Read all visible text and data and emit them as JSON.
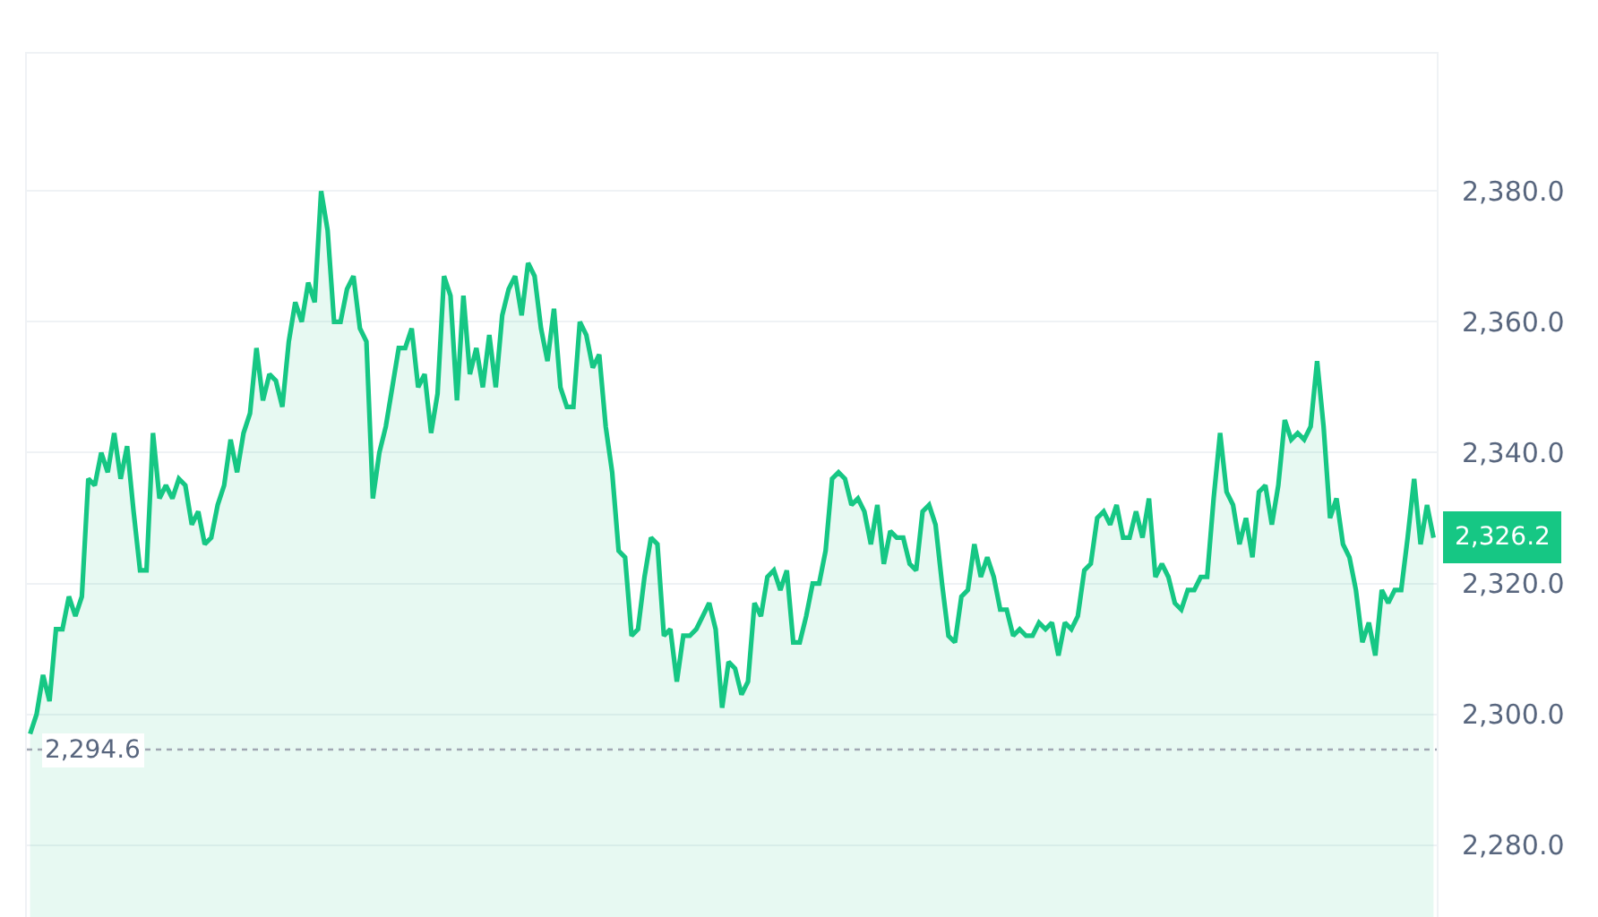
{
  "chart_data": {
    "type": "area",
    "categories": [
      null,
      null,
      null,
      null,
      null,
      null,
      null,
      null,
      null,
      null,
      null,
      null,
      null,
      null,
      null,
      null,
      null,
      null,
      null,
      null,
      null,
      null,
      null,
      null,
      null,
      null,
      null,
      null,
      null,
      null,
      null,
      null,
      null,
      null,
      null,
      null,
      null,
      null,
      null,
      null,
      null,
      null,
      null,
      null,
      null,
      null,
      null,
      null,
      null,
      null,
      null,
      null,
      null,
      null,
      null,
      null,
      null,
      null,
      null,
      null,
      null,
      null,
      null,
      null,
      null,
      null,
      null,
      null,
      null,
      null,
      null,
      null,
      null,
      null,
      null,
      null,
      null,
      null,
      null,
      null,
      null,
      null,
      null,
      null,
      null,
      null,
      null,
      null,
      null,
      null,
      null,
      null,
      null,
      null,
      null,
      null,
      null,
      null,
      null,
      null,
      null,
      null,
      null,
      null,
      null,
      null,
      null,
      null,
      null,
      null,
      null,
      null,
      null,
      null,
      null,
      null,
      null,
      null,
      null,
      null,
      null,
      null,
      null,
      null,
      null,
      null,
      null,
      null,
      null,
      null,
      null,
      null,
      null,
      null,
      null,
      null,
      null,
      null,
      null,
      null,
      null,
      null,
      null,
      null,
      null,
      null,
      null,
      null,
      null,
      null,
      null,
      null,
      null,
      null,
      null,
      null,
      null,
      null,
      null,
      null,
      null,
      null,
      null,
      null,
      null,
      null,
      null,
      null,
      null,
      null,
      null,
      null,
      null,
      null,
      null,
      null,
      null,
      null,
      null,
      null,
      null,
      null,
      null,
      null,
      null,
      null,
      null,
      null,
      null,
      null,
      null,
      null,
      null,
      null,
      null,
      null,
      null,
      null,
      null,
      null,
      null,
      null,
      null,
      null,
      null,
      null,
      null,
      null,
      null,
      null,
      null,
      null,
      null,
      null,
      null,
      null,
      null,
      null
    ],
    "series": [
      {
        "color": "#16c784",
        "values": [
          2297,
          2300,
          2306,
          2302,
          2313,
          2313,
          2318,
          2315,
          2318,
          2336,
          2335,
          2340,
          2337,
          2343,
          2336,
          2341,
          2331,
          2322,
          2322,
          2343,
          2333,
          2335,
          2333,
          2336,
          2335,
          2329,
          2331,
          2326,
          2327,
          2332,
          2335,
          2342,
          2337,
          2343,
          2346,
          2356,
          2348,
          2352,
          2351,
          2347,
          2357,
          2363,
          2360,
          2366,
          2363,
          2380,
          2374,
          2360,
          2360,
          2365,
          2367,
          2359,
          2357,
          2333,
          2340,
          2344,
          2350,
          2356,
          2356,
          2359,
          2350,
          2352,
          2343,
          2349,
          2367,
          2364,
          2348,
          2364,
          2352,
          2356,
          2350,
          2358,
          2350,
          2361,
          2365,
          2367,
          2361,
          2369,
          2367,
          2359,
          2354,
          2362,
          2350,
          2347,
          2347,
          2360,
          2358,
          2353,
          2355,
          2344,
          2337,
          2325,
          2324,
          2312,
          2313,
          2321,
          2327,
          2326,
          2312,
          2313,
          2305,
          2312,
          2312,
          2313,
          2315,
          2317,
          2313,
          2301,
          2308,
          2307,
          2303,
          2305,
          2317,
          2315,
          2321,
          2322,
          2319,
          2322,
          2311,
          2311,
          2315,
          2320,
          2320,
          2325,
          2336,
          2337,
          2336,
          2332,
          2333,
          2331,
          2326,
          2332,
          2323,
          2328,
          2327,
          2327,
          2323,
          2322,
          2331,
          2332,
          2329,
          2320,
          2312,
          2311,
          2318,
          2319,
          2326,
          2321,
          2324,
          2321,
          2316,
          2316,
          2312,
          2313,
          2312,
          2312,
          2314,
          2313,
          2314,
          2309,
          2314,
          2313,
          2315,
          2322,
          2323,
          2330,
          2331,
          2329,
          2332,
          2327,
          2327,
          2331,
          2327,
          2333,
          2321,
          2323,
          2321,
          2317,
          2316,
          2319,
          2319,
          2321,
          2321,
          2333,
          2343,
          2334,
          2332,
          2326,
          2330,
          2324,
          2334,
          2335,
          2329,
          2335,
          2345,
          2342,
          2343,
          2342,
          2344,
          2354,
          2344,
          2330,
          2333,
          2326,
          2324,
          2319,
          2311,
          2314,
          2309,
          2319,
          2317,
          2319,
          2319,
          2327,
          2336,
          2326,
          2332,
          2327
        ]
      }
    ],
    "ylim": [
      2269,
      2401
    ],
    "yticks": [
      {
        "value": 2280,
        "label": "2,280.0"
      },
      {
        "value": 2300,
        "label": "2,300.0"
      },
      {
        "value": 2320,
        "label": "2,320.0"
      },
      {
        "value": 2340,
        "label": "2,340.0"
      },
      {
        "value": 2360,
        "label": "2,360.0"
      },
      {
        "value": 2380,
        "label": "2,380.0"
      }
    ],
    "grid": "y",
    "marker": "none",
    "line_style": "solid",
    "tick_labels": "y",
    "ref_lines": [
      {
        "axis": "y",
        "value": 2294.6,
        "label": "2,294.6",
        "color": "#a0a6b2",
        "line_style": "dotted"
      }
    ],
    "annotations": [
      "2,326.2"
    ]
  }
}
